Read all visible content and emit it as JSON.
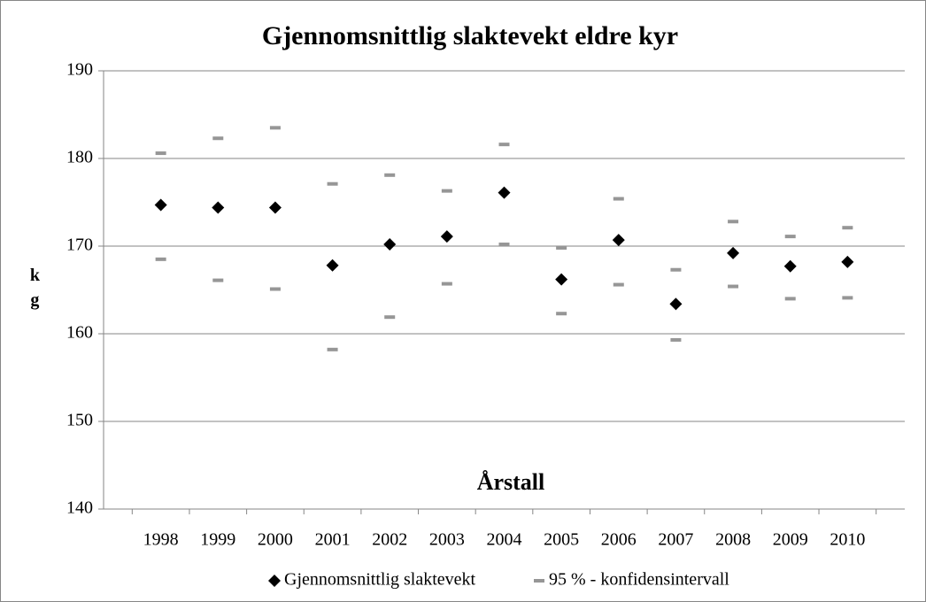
{
  "chart_data": {
    "type": "scatter",
    "title": "Gjennomsnittlig slaktevekt eldre kyr",
    "x_label": "Årstall",
    "y_label": "kg",
    "categories": [
      "1998",
      "1999",
      "2000",
      "2001",
      "2002",
      "2003",
      "2004",
      "2005",
      "2006",
      "2007",
      "2008",
      "2009",
      "2010"
    ],
    "series": [
      {
        "name": "Gjennomsnittlig slaktevekt",
        "color": "#000000",
        "values": [
          174.7,
          174.4,
          174.4,
          167.8,
          170.2,
          171.1,
          176.1,
          166.2,
          170.7,
          163.4,
          169.2,
          167.7,
          168.2
        ]
      },
      {
        "name": "95 % - konfidensintervall",
        "color": "#969696",
        "upper": [
          180.6,
          182.3,
          183.5,
          177.1,
          178.1,
          176.3,
          181.6,
          169.8,
          175.4,
          167.3,
          172.8,
          171.1,
          172.1
        ],
        "lower": [
          168.5,
          166.1,
          165.1,
          158.2,
          161.9,
          165.7,
          170.2,
          162.3,
          165.6,
          159.3,
          165.4,
          164.0,
          164.1
        ]
      }
    ],
    "ylim": [
      140,
      190
    ],
    "yticks": [
      140,
      150,
      160,
      170,
      180,
      190
    ],
    "grid": true
  }
}
